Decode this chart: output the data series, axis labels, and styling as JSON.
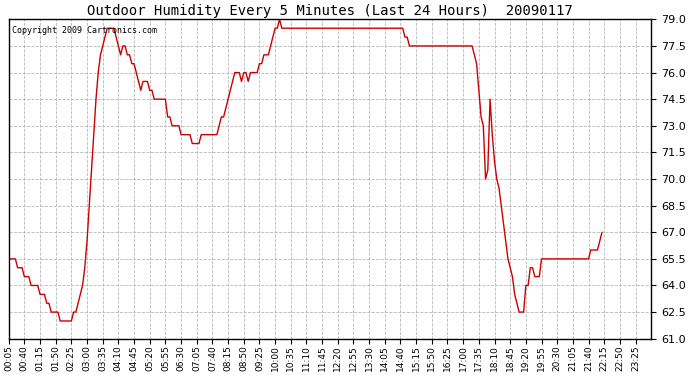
{
  "title": "Outdoor Humidity Every 5 Minutes (Last 24 Hours)  20090117",
  "copyright": "Copyright 2009 Cartronics.com",
  "line_color": "#cc0000",
  "bg_color": "#ffffff",
  "grid_color": "#b0b0b0",
  "ylim": [
    61.0,
    79.0
  ],
  "yticks": [
    61.0,
    62.5,
    64.0,
    65.5,
    67.0,
    68.5,
    70.0,
    71.5,
    73.0,
    74.5,
    76.0,
    77.5,
    79.0
  ],
  "xtick_labels": [
    "00:05",
    "00:40",
    "01:15",
    "01:50",
    "02:25",
    "03:00",
    "03:35",
    "04:10",
    "04:45",
    "05:20",
    "05:55",
    "06:30",
    "07:05",
    "07:40",
    "08:15",
    "08:50",
    "09:25",
    "10:00",
    "10:35",
    "11:10",
    "11:45",
    "12:20",
    "12:55",
    "13:30",
    "14:05",
    "14:40",
    "15:15",
    "15:50",
    "16:25",
    "17:00",
    "17:35",
    "18:10",
    "18:45",
    "19:20",
    "19:55",
    "20:30",
    "21:05",
    "21:40",
    "22:15",
    "22:50",
    "23:25"
  ],
  "y_values": [
    65.5,
    65.5,
    65.5,
    65.5,
    65.0,
    65.0,
    65.0,
    64.5,
    64.5,
    64.5,
    64.0,
    64.0,
    64.0,
    64.0,
    63.5,
    63.5,
    63.5,
    63.0,
    63.0,
    62.5,
    62.5,
    62.5,
    62.5,
    62.0,
    62.0,
    62.0,
    62.0,
    62.0,
    62.0,
    62.5,
    62.5,
    63.0,
    63.5,
    64.0,
    65.0,
    66.5,
    68.5,
    70.5,
    72.5,
    74.5,
    76.0,
    77.0,
    77.5,
    78.0,
    78.5,
    78.5,
    78.5,
    78.5,
    78.0,
    77.5,
    77.0,
    77.5,
    77.5,
    77.0,
    77.0,
    76.5,
    76.5,
    76.0,
    75.5,
    75.0,
    75.5,
    75.5,
    75.5,
    75.0,
    75.0,
    74.5,
    74.5,
    74.5,
    74.5,
    74.5,
    74.5,
    73.5,
    73.5,
    73.0,
    73.0,
    73.0,
    73.0,
    72.5,
    72.5,
    72.5,
    72.5,
    72.5,
    72.0,
    72.0,
    72.0,
    72.0,
    72.5,
    72.5,
    72.5,
    72.5,
    72.5,
    72.5,
    72.5,
    72.5,
    73.0,
    73.5,
    73.5,
    74.0,
    74.5,
    75.0,
    75.5,
    76.0,
    76.0,
    76.0,
    75.5,
    76.0,
    76.0,
    75.5,
    76.0,
    76.0,
    76.0,
    76.0,
    76.5,
    76.5,
    77.0,
    77.0,
    77.0,
    77.5,
    78.0,
    78.5,
    78.5,
    79.0,
    78.5,
    78.5,
    78.5,
    78.5,
    78.5,
    78.5,
    78.5,
    78.5,
    78.5,
    78.5,
    78.5,
    78.5,
    78.5,
    78.5,
    78.5,
    78.5,
    78.5,
    78.5,
    78.5,
    78.5,
    78.5,
    78.5,
    78.5,
    78.5,
    78.5,
    78.5,
    78.5,
    78.5,
    78.5,
    78.5,
    78.5,
    78.5,
    78.5,
    78.5,
    78.5,
    78.5,
    78.5,
    78.5,
    78.5,
    78.5,
    78.5,
    78.5,
    78.5,
    78.5,
    78.5,
    78.5,
    78.5,
    78.5,
    78.5,
    78.5,
    78.5,
    78.5,
    78.5,
    78.5,
    78.5,
    78.0,
    78.0,
    77.5,
    77.5,
    77.5,
    77.5,
    77.5,
    77.5,
    77.5,
    77.5,
    77.5,
    77.5,
    77.5,
    77.5,
    77.5,
    77.5,
    77.5,
    77.5,
    77.5,
    77.5,
    77.5,
    77.5,
    77.5,
    77.5,
    77.5,
    77.5,
    77.5,
    77.5,
    77.5,
    77.5,
    77.5,
    77.0,
    76.5,
    75.0,
    73.5,
    73.0,
    70.0,
    70.5,
    74.5,
    72.5,
    71.0,
    70.0,
    69.5,
    68.5,
    67.5,
    66.5,
    65.5,
    65.0,
    64.5,
    63.5,
    63.0,
    62.5,
    62.5,
    62.5,
    64.0,
    64.0,
    65.0,
    65.0,
    64.5,
    64.5,
    64.5,
    65.5,
    65.5,
    65.5,
    65.5,
    65.5,
    65.5,
    65.5,
    65.5,
    65.5,
    65.5,
    65.5,
    65.5,
    65.5,
    65.5,
    65.5,
    65.5,
    65.5,
    65.5,
    65.5,
    65.5,
    65.5,
    65.5,
    66.0,
    66.0,
    66.0,
    66.0,
    66.5,
    67.0
  ]
}
